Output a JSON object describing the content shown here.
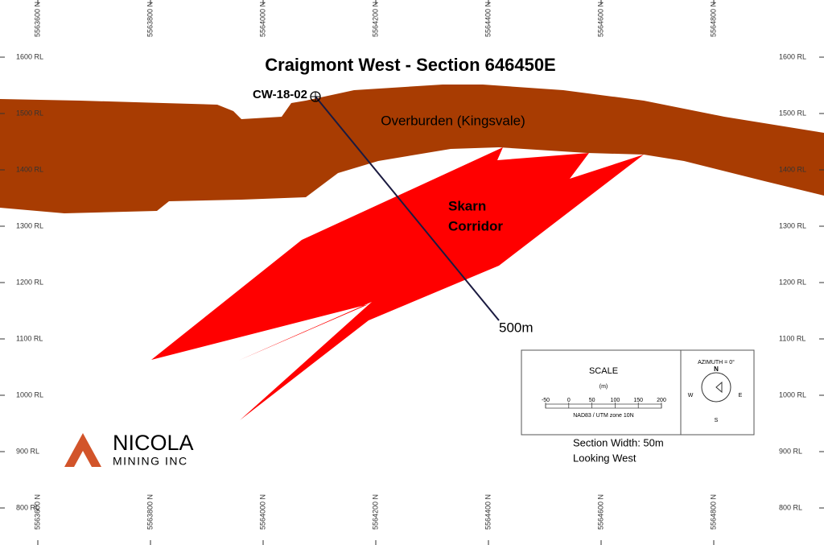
{
  "header": {
    "title": "Craigmont West - Section 646450E"
  },
  "grid": {
    "eastings": [
      "5563600 N",
      "5563800 N",
      "5564000 N",
      "5564200 N",
      "5564400 N",
      "5564600 N",
      "5564800 N"
    ],
    "elevations": [
      "1600 RL",
      "1500 RL",
      "1400 RL",
      "1300 RL",
      "1200 RL",
      "1100 RL",
      "1000 RL",
      "900 RL",
      "800 RL"
    ]
  },
  "drillhole": {
    "name": "CW-18-02",
    "depth": "500m"
  },
  "units": {
    "overburden": "Overburden (Kingsvale)",
    "skarn": [
      "Skarn",
      "Corridor"
    ]
  },
  "scale": {
    "title": "SCALE",
    "unit": "(m)",
    "ticks": [
      "-50",
      "0",
      "50",
      "100",
      "150",
      "200"
    ],
    "datum": "NAD83 / UTM zone 10N"
  },
  "compass": {
    "azimuth": "AZIMUTH = 0°",
    "n": "N",
    "w": "W",
    "e": "E",
    "s": "S"
  },
  "notes": [
    "Section Width: 50m",
    "Looking West"
  ],
  "logo": {
    "name": "NICOLA",
    "sub": "MINING INC"
  }
}
